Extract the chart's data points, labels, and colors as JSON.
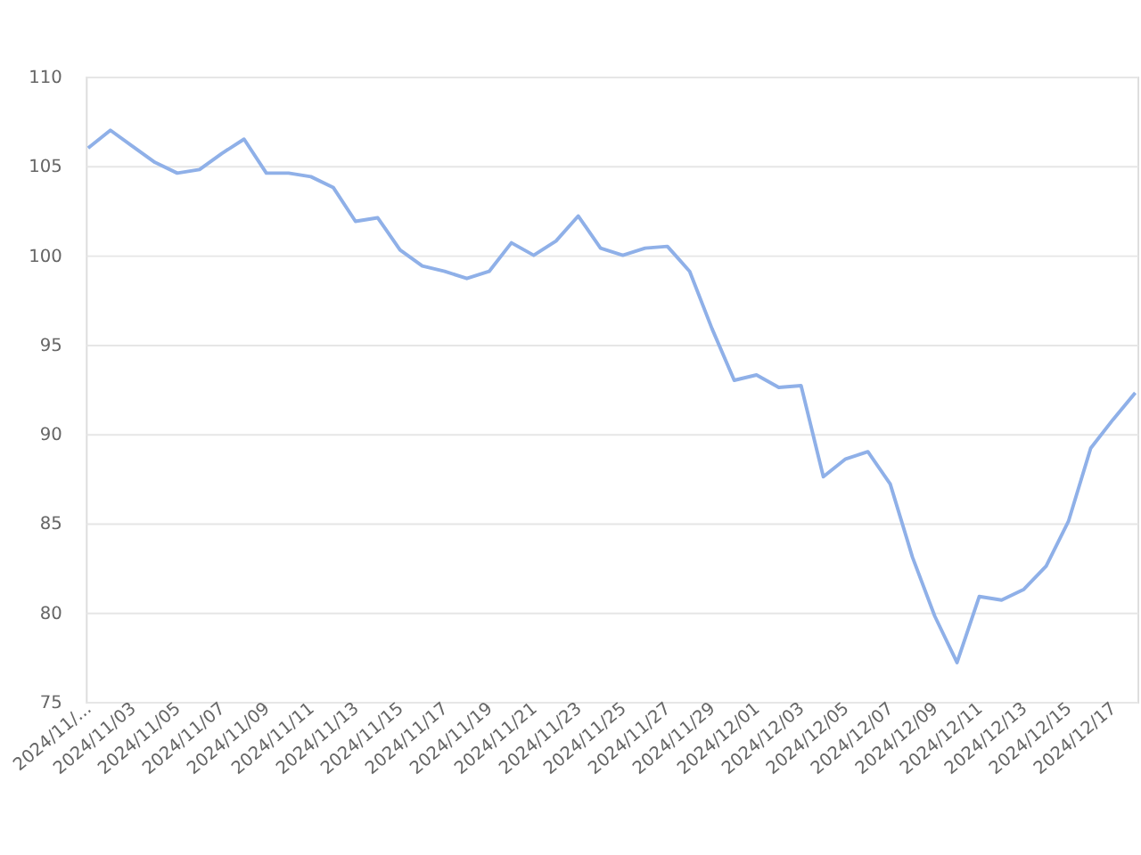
{
  "chart_data": {
    "type": "line",
    "categories": [
      "2024/11/...",
      null,
      "2024/11/03",
      null,
      "2024/11/05",
      null,
      "2024/11/07",
      null,
      "2024/11/09",
      null,
      "2024/11/11",
      null,
      "2024/11/13",
      null,
      "2024/11/15",
      null,
      "2024/11/17",
      null,
      "2024/11/19",
      null,
      "2024/11/21",
      null,
      "2024/11/23",
      null,
      "2024/11/25",
      null,
      "2024/11/27",
      null,
      "2024/11/29",
      null,
      "2024/12/01",
      null,
      "2024/12/03",
      null,
      "2024/12/05",
      null,
      "2024/12/07",
      null,
      "2024/12/09",
      null,
      "2024/12/11",
      null,
      "2024/12/13",
      null,
      "2024/12/15",
      null,
      "2024/12/17",
      null
    ],
    "series": [
      {
        "color": "#8fb0e8",
        "values": [
          106.0,
          107.0,
          106.1,
          105.2,
          104.6,
          104.8,
          105.7,
          106.5,
          104.6,
          104.6,
          104.4,
          103.8,
          101.9,
          102.1,
          100.3,
          99.4,
          99.1,
          98.7,
          99.1,
          100.7,
          100.0,
          100.8,
          102.2,
          100.4,
          100.0,
          100.4,
          100.5,
          99.1,
          95.9,
          93.0,
          93.3,
          92.6,
          92.7,
          87.6,
          88.6,
          89.0,
          87.2,
          83.1,
          79.8,
          77.2,
          80.9,
          80.7,
          81.3,
          82.6,
          85.1,
          89.2,
          90.8,
          92.3
        ]
      }
    ],
    "ylim": [
      75,
      110
    ],
    "yticks": [
      75,
      80,
      85,
      90,
      95,
      100,
      105,
      110
    ],
    "grid": "y",
    "marker": "none",
    "line_style": "solid"
  }
}
